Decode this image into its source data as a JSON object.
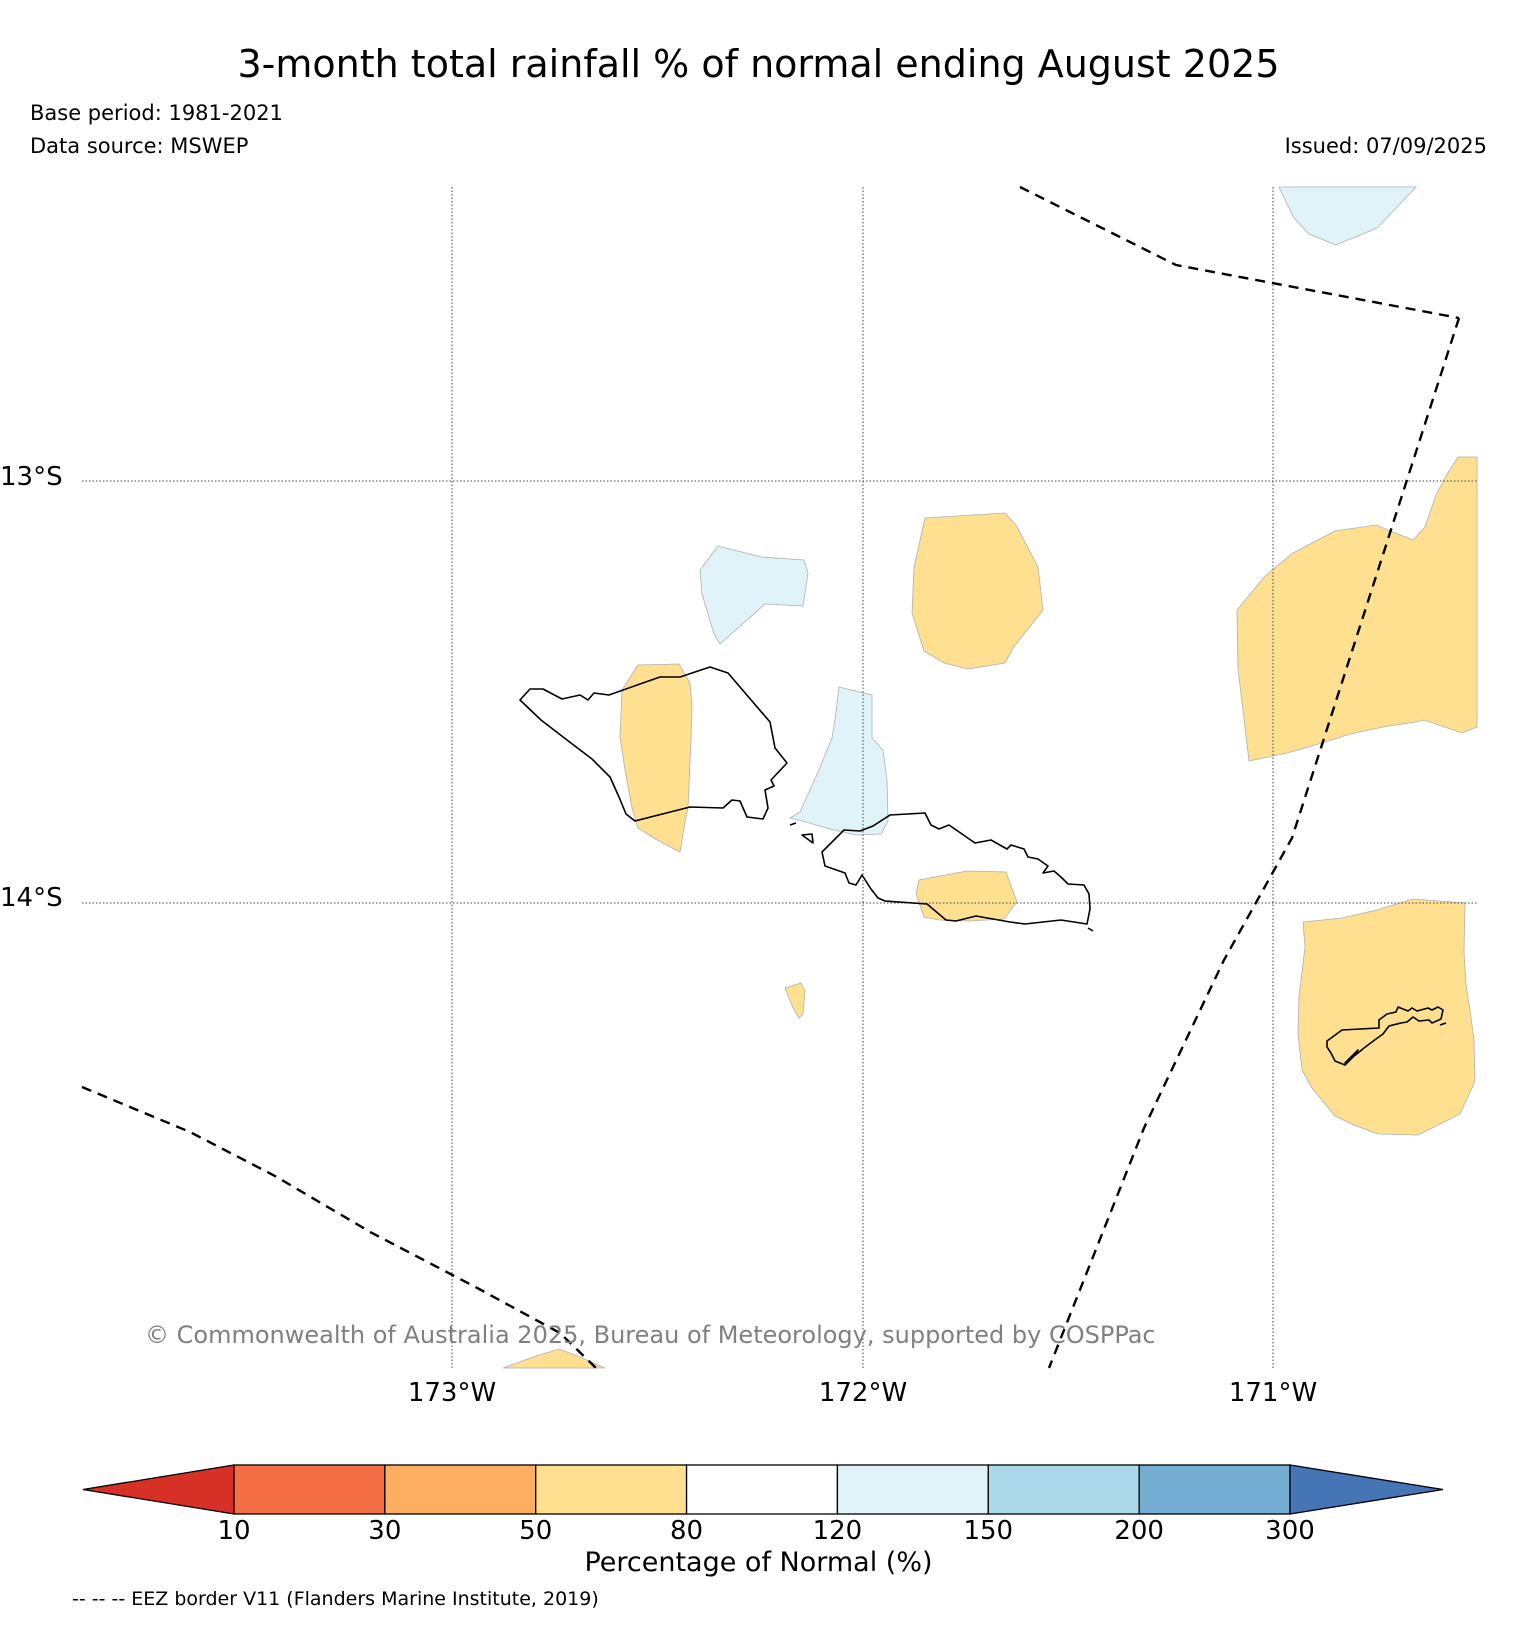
{
  "title": "3-month total rainfall % of normal ending August 2025",
  "base_period": "Base period: 1981-2021",
  "data_source": "Data source: MSWEP",
  "issued": "Issued: 07/09/2025",
  "map": {
    "latitude_labels": [
      "13°S",
      "14°S"
    ],
    "longitude_labels": [
      "173°W",
      "172°W",
      "171°W"
    ],
    "copyright": "© Commonwealth of Australia 2025, Bureau of Meteorology, supported by COSPPac",
    "region_categories": {
      "yellow": "50-80%",
      "light_blue": "120-150%"
    }
  },
  "legend": {
    "tick_labels": [
      "10",
      "30",
      "50",
      "80",
      "120",
      "150",
      "200",
      "300"
    ],
    "colors": [
      "#d73027",
      "#f46d43",
      "#fdae61",
      "#fee090",
      "#ffffff",
      "#e0f3f8",
      "#abd9e9",
      "#74add1",
      "#4575b4"
    ],
    "label": "Percentage of Normal (%)",
    "eez_note": "-- -- -- EEZ border V11 (Flanders Marine Institute, 2019)"
  }
}
